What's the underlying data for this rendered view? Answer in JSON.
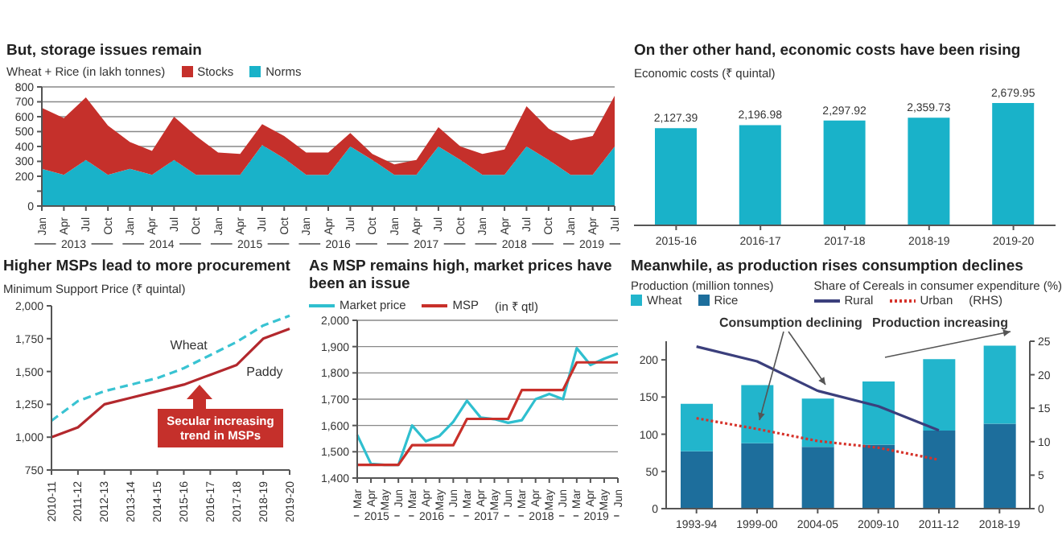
{
  "chart_data": [
    {
      "type": "area",
      "stacked": true,
      "title": "But, storage issues remain",
      "ylabel": "Wheat + Rice (in lakh tonnes)",
      "categories": [
        "Jan",
        "Apr",
        "Jul",
        "Oct",
        "Jan",
        "Apr",
        "Jul",
        "Oct",
        "Jan",
        "Apr",
        "Jul",
        "Oct",
        "Jan",
        "Apr",
        "Jul",
        "Oct",
        "Jan",
        "Apr",
        "Jul",
        "Oct",
        "Jan",
        "Apr",
        "Jul",
        "Oct",
        "Jan",
        "Apr",
        "Jul"
      ],
      "series": [
        {
          "name": "Norms",
          "color": "#19b2c9",
          "values": [
            250,
            210,
            310,
            210,
            250,
            210,
            310,
            210,
            210,
            210,
            410,
            320,
            210,
            210,
            400,
            310,
            210,
            210,
            400,
            310,
            210,
            210,
            400,
            310,
            210,
            210,
            400
          ]
        },
        {
          "name": "Stocks",
          "color": "#c5302b",
          "values": [
            410,
            380,
            420,
            330,
            180,
            160,
            290,
            260,
            150,
            140,
            140,
            150,
            150,
            150,
            90,
            40,
            70,
            100,
            130,
            90,
            140,
            170,
            270,
            210,
            230,
            260,
            340
          ]
        }
      ],
      "annotations": [
        "2013",
        "2014",
        "2015",
        "2016",
        "2017",
        "2018",
        "2019"
      ],
      "ylim": [
        0,
        800
      ],
      "yticks": [
        0,
        {
          "value": 100,
          "label": null
        },
        200,
        300,
        400,
        500,
        600,
        700,
        800
      ],
      "grid": "y",
      "legend": "top left"
    },
    {
      "type": "bar",
      "title": "On ther other hand, economic costs have been rising",
      "ylabel": "Economic costs (₹ quintal)",
      "categories": [
        "2015-16",
        "2016-17",
        "2017-18",
        "2018-19",
        "2019-20"
      ],
      "values": [
        2127.39,
        2196.98,
        2297.92,
        2359.73,
        2679.95
      ],
      "value_labels": [
        "2,127.39",
        "2,196.98",
        "2,297.92",
        "2,359.73",
        "2,679.95"
      ],
      "color": "#19b2c9"
    },
    {
      "type": "line",
      "title": "Higher MSPs lead to more procurement",
      "ylabel": "Minimum Support Price (₹ quintal)",
      "categories": [
        "2010-11",
        "2011-12",
        "2012-13",
        "2013-14",
        "2014-15",
        "2015-16",
        "2016-17",
        "2017-18",
        "2018-19",
        "2019-20"
      ],
      "series": [
        {
          "name": "Wheat",
          "color": "#39c3d2",
          "line_style": "dashed",
          "values": [
            1125,
            1275,
            1350,
            1400,
            1450,
            1525,
            1625,
            1725,
            1850,
            1925
          ]
        },
        {
          "name": "Paddy",
          "color": "#b3282d",
          "values": [
            1000,
            1075,
            1250,
            1300,
            1350,
            1400,
            1475,
            1550,
            1750,
            1825
          ]
        }
      ],
      "annotations": [
        "Secular increasing trend in MSPs"
      ],
      "ylim": [
        750,
        2000
      ],
      "yticks": [
        750,
        {
          "value": 1000,
          "label": "1,000"
        },
        {
          "value": 1250,
          "label": "1,250"
        },
        {
          "value": 1500,
          "label": "1,500"
        },
        {
          "value": 1750,
          "label": "1,750"
        },
        {
          "value": 2000,
          "label": "2,000"
        }
      ]
    },
    {
      "type": "line",
      "title": "As MSP remains high, market prices have been an issue",
      "ylabel": "(in ₹ qtl)",
      "categories": [
        "Mar",
        "Apr",
        "May",
        "Jun",
        "Mar",
        "Apr",
        "May",
        "Jun",
        "Mar",
        "Apr",
        "May",
        "Jun",
        "Mar",
        "Apr",
        "May",
        "Jun",
        "Mar",
        "Apr",
        "May",
        "Jun"
      ],
      "series": [
        {
          "name": "Market price",
          "color": "#2fbfcf",
          "values": [
            1564,
            1454,
            1450,
            1450,
            1600,
            1540,
            1560,
            1614,
            1694,
            1630,
            1624,
            1610,
            1620,
            1700,
            1720,
            1700,
            1894,
            1830,
            1854,
            1874
          ]
        },
        {
          "name": "MSP",
          "color": "#c8302a",
          "values": [
            1450,
            1450,
            1450,
            1450,
            1525,
            1525,
            1525,
            1525,
            1625,
            1625,
            1625,
            1625,
            1735,
            1735,
            1735,
            1735,
            1840,
            1840,
            1840,
            1840
          ]
        }
      ],
      "annotations": [
        "2015",
        "2016",
        "2017",
        "2018",
        "2019"
      ],
      "ylim": [
        1400,
        2000
      ],
      "yticks": [
        {
          "value": 1400,
          "label": "1,400"
        },
        {
          "value": 1500,
          "label": "1,500"
        },
        {
          "value": 1600,
          "label": "1,600"
        },
        {
          "value": 1700,
          "label": "1,700"
        },
        {
          "value": 1800,
          "label": "1,800"
        },
        {
          "value": 1900,
          "label": "1,900"
        },
        {
          "value": 2000,
          "label": "2,000"
        }
      ],
      "grid": "y",
      "legend": "top left"
    },
    {
      "type": "bar",
      "stacked": true,
      "title": "Meanwhile, as production rises consumption declines",
      "ylabel": "Production (million tonnes)",
      "y2label": "Share of Cereals in consumer expenditure (%)",
      "categories": [
        "1993-94",
        "1999-00",
        "2004-05",
        "2009-10",
        "2011-12",
        "2018-19"
      ],
      "series": [
        {
          "name": "Rice",
          "color": "#1d6e9c",
          "values": [
            77,
            88,
            83,
            86,
            105,
            114
          ]
        },
        {
          "name": "Wheat",
          "color": "#22b5cc",
          "values": [
            64,
            78,
            65,
            85,
            96,
            105
          ]
        },
        {
          "name": "Rural",
          "type": "line",
          "axis": "y2",
          "color": "#3b3f7c",
          "values": [
            24.2,
            22,
            17.6,
            15.3,
            11.7,
            null
          ]
        },
        {
          "name": "Urban",
          "type": "line",
          "axis": "y2",
          "line_style": "dotted",
          "color": "#d6332b",
          "values": [
            13.5,
            11.9,
            10.1,
            9.1,
            7.3,
            null
          ]
        }
      ],
      "annotations": [
        "Consumption declining",
        "Production increasing",
        "(RHS)"
      ],
      "ylim": [
        0,
        225
      ],
      "yticks": [
        0,
        50,
        100,
        150,
        200
      ],
      "y2lim": [
        0,
        25
      ],
      "y2ticks": [
        0,
        5,
        10,
        15,
        20,
        25
      ],
      "legend": "top"
    }
  ]
}
